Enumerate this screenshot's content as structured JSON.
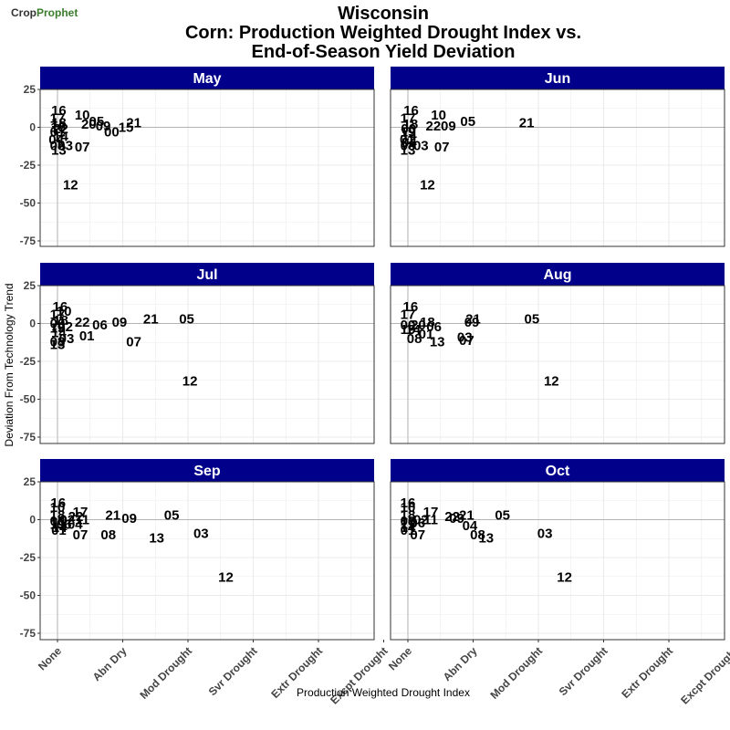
{
  "brand": {
    "name_part1": "Crop",
    "name_part2": "Prophet",
    "accent_color": "#3a7d2c"
  },
  "title_lines": [
    "Wisconsin",
    "Corn: Production Weighted Drought Index vs.",
    "End-of-Season Yield Deviation"
  ],
  "colors": {
    "strip_fill": "#00008b",
    "strip_text": "#ffffff",
    "grid": "#ebebeb",
    "zero_line": "#b3b3b3",
    "panel_border": "#333333"
  },
  "chart_data": {
    "type": "scatter",
    "title": "Wisconsin\nCorn: Production Weighted Drought Index vs.\nEnd-of-Season Yield Deviation",
    "xlabel": "Production Weighted Drought Index",
    "ylabel": "Deviation From Technology Trend",
    "x_ticks": [
      {
        "value": 0,
        "label": "None"
      },
      {
        "value": 1,
        "label": "Abn Dry"
      },
      {
        "value": 2,
        "label": "Mod Drought"
      },
      {
        "value": 3,
        "label": "Svr Drought"
      },
      {
        "value": 4,
        "label": "Extr Drought"
      },
      {
        "value": 5,
        "label": "Excpt Drought"
      }
    ],
    "y_ticks": [
      25,
      0,
      -25,
      -50,
      -75
    ],
    "xlim": [
      -0.25,
      5
    ],
    "ylim": [
      -78,
      25
    ],
    "grid": true,
    "facets": [
      {
        "name": "May",
        "points": [
          {
            "label": "16",
            "x": 0.02,
            "y": 11
          },
          {
            "label": "10",
            "x": 0.38,
            "y": 8
          },
          {
            "label": "05",
            "x": 0.6,
            "y": 4
          },
          {
            "label": "20",
            "x": 0.48,
            "y": 2
          },
          {
            "label": "09",
            "x": 0.7,
            "y": 1
          },
          {
            "label": "21",
            "x": 1.17,
            "y": 3
          },
          {
            "label": "15",
            "x": 1.05,
            "y": 0
          },
          {
            "label": "00",
            "x": 0.83,
            "y": -3
          },
          {
            "label": "18",
            "x": 0.02,
            "y": 3
          },
          {
            "label": "17",
            "x": 0.0,
            "y": 6
          },
          {
            "label": "19",
            "x": 0.01,
            "y": 0
          },
          {
            "label": "22",
            "x": 0.05,
            "y": -1
          },
          {
            "label": "14",
            "x": 0.05,
            "y": -6
          },
          {
            "label": "01",
            "x": 0.0,
            "y": -3
          },
          {
            "label": "04",
            "x": -0.02,
            "y": -8
          },
          {
            "label": "08",
            "x": 0.0,
            "y": -12
          },
          {
            "label": "03",
            "x": 0.12,
            "y": -12
          },
          {
            "label": "13",
            "x": 0.02,
            "y": -15
          },
          {
            "label": "07",
            "x": 0.38,
            "y": -13
          },
          {
            "label": "12",
            "x": 0.2,
            "y": -38
          }
        ]
      },
      {
        "name": "Jun",
        "points": [
          {
            "label": "16",
            "x": 0.05,
            "y": 11
          },
          {
            "label": "10",
            "x": 0.47,
            "y": 8
          },
          {
            "label": "05",
            "x": 0.92,
            "y": 4
          },
          {
            "label": "21",
            "x": 1.82,
            "y": 3
          },
          {
            "label": "22",
            "x": 0.39,
            "y": 1
          },
          {
            "label": "09",
            "x": 0.62,
            "y": 1
          },
          {
            "label": "18",
            "x": 0.04,
            "y": 2
          },
          {
            "label": "17",
            "x": 0.0,
            "y": 6
          },
          {
            "label": "00",
            "x": 0.01,
            "y": -1
          },
          {
            "label": "19",
            "x": 0.0,
            "y": -3
          },
          {
            "label": "14",
            "x": 0.02,
            "y": -5
          },
          {
            "label": "01",
            "x": -0.01,
            "y": -8
          },
          {
            "label": "04",
            "x": 0.02,
            "y": -10
          },
          {
            "label": "08",
            "x": 0.0,
            "y": -12
          },
          {
            "label": "03",
            "x": 0.2,
            "y": -12
          },
          {
            "label": "13",
            "x": 0.0,
            "y": -15
          },
          {
            "label": "07",
            "x": 0.52,
            "y": -13
          },
          {
            "label": "12",
            "x": 0.3,
            "y": -38
          }
        ]
      },
      {
        "name": "Jul",
        "points": [
          {
            "label": "16",
            "x": 0.04,
            "y": 11
          },
          {
            "label": "10",
            "x": 0.1,
            "y": 8
          },
          {
            "label": "17",
            "x": 0.0,
            "y": 6
          },
          {
            "label": "21",
            "x": 1.43,
            "y": 3
          },
          {
            "label": "05",
            "x": 1.98,
            "y": 3
          },
          {
            "label": "22",
            "x": 0.38,
            "y": 1
          },
          {
            "label": "09",
            "x": 0.95,
            "y": 1
          },
          {
            "label": "06",
            "x": 0.65,
            "y": -1
          },
          {
            "label": "18",
            "x": 0.05,
            "y": 2
          },
          {
            "label": "00",
            "x": 0.0,
            "y": 0
          },
          {
            "label": "02",
            "x": 0.12,
            "y": -2
          },
          {
            "label": "19",
            "x": 0.0,
            "y": -3
          },
          {
            "label": "14",
            "x": 0.02,
            "y": -6
          },
          {
            "label": "01",
            "x": 0.45,
            "y": -8
          },
          {
            "label": "03",
            "x": 0.14,
            "y": -10
          },
          {
            "label": "08",
            "x": 0.0,
            "y": -12
          },
          {
            "label": "13",
            "x": 0.0,
            "y": -14
          },
          {
            "label": "07",
            "x": 1.17,
            "y": -12
          },
          {
            "label": "12",
            "x": 2.03,
            "y": -38
          }
        ]
      },
      {
        "name": "Aug",
        "points": [
          {
            "label": "16",
            "x": 0.04,
            "y": 11
          },
          {
            "label": "17",
            "x": 0.0,
            "y": 6
          },
          {
            "label": "05",
            "x": 1.9,
            "y": 3
          },
          {
            "label": "21",
            "x": 1.0,
            "y": 3
          },
          {
            "label": "09",
            "x": 0.98,
            "y": 1
          },
          {
            "label": "00",
            "x": 0.0,
            "y": -1
          },
          {
            "label": "18",
            "x": 0.3,
            "y": 1
          },
          {
            "label": "20",
            "x": 0.16,
            "y": -1
          },
          {
            "label": "06",
            "x": 0.4,
            "y": -2
          },
          {
            "label": "19",
            "x": 0.0,
            "y": -4
          },
          {
            "label": "14",
            "x": 0.08,
            "y": -4
          },
          {
            "label": "01",
            "x": 0.28,
            "y": -7
          },
          {
            "label": "08",
            "x": 0.1,
            "y": -10
          },
          {
            "label": "13",
            "x": 0.45,
            "y": -12
          },
          {
            "label": "03",
            "x": 0.87,
            "y": -9
          },
          {
            "label": "07",
            "x": 0.9,
            "y": -11
          },
          {
            "label": "12",
            "x": 2.2,
            "y": -38
          }
        ]
      },
      {
        "name": "Sep",
        "points": [
          {
            "label": "16",
            "x": 0.01,
            "y": 11
          },
          {
            "label": "10",
            "x": 0.0,
            "y": 8
          },
          {
            "label": "17",
            "x": 0.35,
            "y": 5
          },
          {
            "label": "21",
            "x": 0.85,
            "y": 3
          },
          {
            "label": "09",
            "x": 1.1,
            "y": 1
          },
          {
            "label": "05",
            "x": 1.75,
            "y": 3
          },
          {
            "label": "18",
            "x": 0.0,
            "y": 3
          },
          {
            "label": "22",
            "x": 0.28,
            "y": 2
          },
          {
            "label": "02",
            "x": 0.15,
            "y": 0
          },
          {
            "label": "11",
            "x": 0.38,
            "y": 0
          },
          {
            "label": "00",
            "x": 0.0,
            "y": -1
          },
          {
            "label": "19",
            "x": 0.0,
            "y": -3
          },
          {
            "label": "06",
            "x": 0.1,
            "y": -3
          },
          {
            "label": "04",
            "x": 0.27,
            "y": -3
          },
          {
            "label": "14",
            "x": 0.03,
            "y": -5
          },
          {
            "label": "01",
            "x": 0.02,
            "y": -7
          },
          {
            "label": "07",
            "x": 0.35,
            "y": -10
          },
          {
            "label": "08",
            "x": 0.78,
            "y": -10
          },
          {
            "label": "13",
            "x": 1.52,
            "y": -12
          },
          {
            "label": "03",
            "x": 2.2,
            "y": -9
          },
          {
            "label": "12",
            "x": 2.58,
            "y": -38
          }
        ]
      },
      {
        "name": "Oct",
        "points": [
          {
            "label": "16",
            "x": 0.0,
            "y": 11
          },
          {
            "label": "10",
            "x": 0.0,
            "y": 8
          },
          {
            "label": "17",
            "x": 0.35,
            "y": 5
          },
          {
            "label": "05",
            "x": 1.45,
            "y": 3
          },
          {
            "label": "21",
            "x": 0.9,
            "y": 3
          },
          {
            "label": "22",
            "x": 0.68,
            "y": 2
          },
          {
            "label": "09",
            "x": 0.75,
            "y": 1
          },
          {
            "label": "18",
            "x": 0.0,
            "y": 3
          },
          {
            "label": "11",
            "x": 0.35,
            "y": 0
          },
          {
            "label": "02",
            "x": 0.2,
            "y": 0
          },
          {
            "label": "06",
            "x": 0.15,
            "y": -2
          },
          {
            "label": "00",
            "x": 0.0,
            "y": -1
          },
          {
            "label": "19",
            "x": 0.0,
            "y": -3
          },
          {
            "label": "14",
            "x": 0.0,
            "y": -5
          },
          {
            "label": "04",
            "x": 0.95,
            "y": -4
          },
          {
            "label": "01",
            "x": 0.0,
            "y": -7
          },
          {
            "label": "07",
            "x": 0.15,
            "y": -10
          },
          {
            "label": "08",
            "x": 1.07,
            "y": -10
          },
          {
            "label": "13",
            "x": 1.2,
            "y": -12
          },
          {
            "label": "03",
            "x": 2.1,
            "y": -9
          },
          {
            "label": "12",
            "x": 2.4,
            "y": -38
          }
        ]
      }
    ]
  }
}
